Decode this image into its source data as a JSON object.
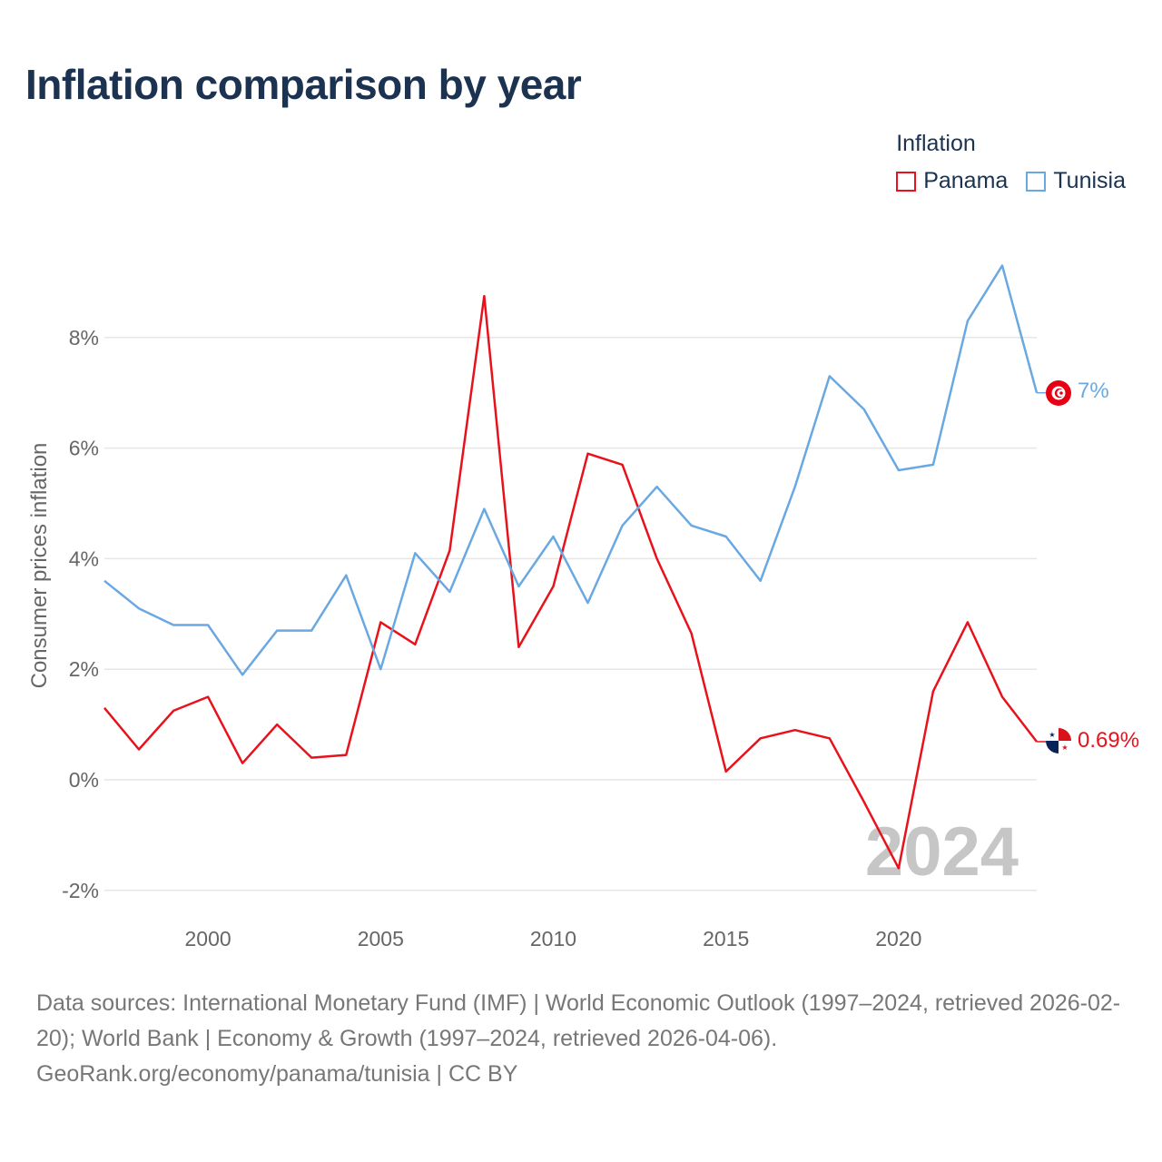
{
  "title": "Inflation comparison by year",
  "legend": {
    "title": "Inflation",
    "items": [
      {
        "label": "Panama",
        "color": "#e8121c"
      },
      {
        "label": "Tunisia",
        "color": "#6aa8e2"
      }
    ]
  },
  "chart_data": {
    "type": "line",
    "title": "Inflation comparison by year",
    "xlabel": "",
    "ylabel": "Consumer prices inflation",
    "xlim": [
      1997,
      2024
    ],
    "ylim": [
      -2.8,
      10
    ],
    "x_ticks": [
      2000,
      2005,
      2010,
      2015,
      2020
    ],
    "y_ticks": [
      -2,
      0,
      2,
      4,
      6,
      8
    ],
    "y_tick_labels": [
      "-2%",
      "0%",
      "2%",
      "4%",
      "6%",
      "8%"
    ],
    "grid": true,
    "year_label": "2024",
    "x": [
      1997,
      1998,
      1999,
      2000,
      2001,
      2002,
      2003,
      2004,
      2005,
      2006,
      2007,
      2008,
      2009,
      2010,
      2011,
      2012,
      2013,
      2014,
      2015,
      2016,
      2017,
      2018,
      2019,
      2020,
      2021,
      2022,
      2023,
      2024
    ],
    "series": [
      {
        "name": "Panama",
        "color": "#e8121c",
        "end_label": "0.69%",
        "values": [
          1.3,
          0.55,
          1.25,
          1.5,
          0.3,
          1.0,
          0.4,
          0.45,
          2.85,
          2.45,
          4.15,
          8.75,
          2.4,
          3.5,
          5.9,
          5.7,
          4.0,
          2.65,
          0.15,
          0.75,
          0.9,
          0.75,
          -0.4,
          -1.6,
          1.6,
          2.85,
          1.5,
          0.69
        ]
      },
      {
        "name": "Tunisia",
        "color": "#6aa8e2",
        "end_label": "7%",
        "values": [
          3.6,
          3.1,
          2.8,
          2.8,
          1.9,
          2.7,
          2.7,
          3.7,
          2.0,
          4.1,
          3.4,
          4.9,
          3.5,
          4.4,
          3.2,
          4.6,
          5.3,
          4.6,
          4.4,
          3.6,
          5.3,
          7.3,
          6.7,
          5.6,
          5.7,
          8.3,
          9.3,
          7.0
        ]
      }
    ]
  },
  "sources_text": "Data sources: International Monetary Fund (IMF) | World Economic Outlook (1997–2024, retrieved 2026-02-20); World Bank | Economy & Growth (1997–2024, retrieved 2026-04-06). GeoRank.org/economy/panama/tunisia | CC BY"
}
